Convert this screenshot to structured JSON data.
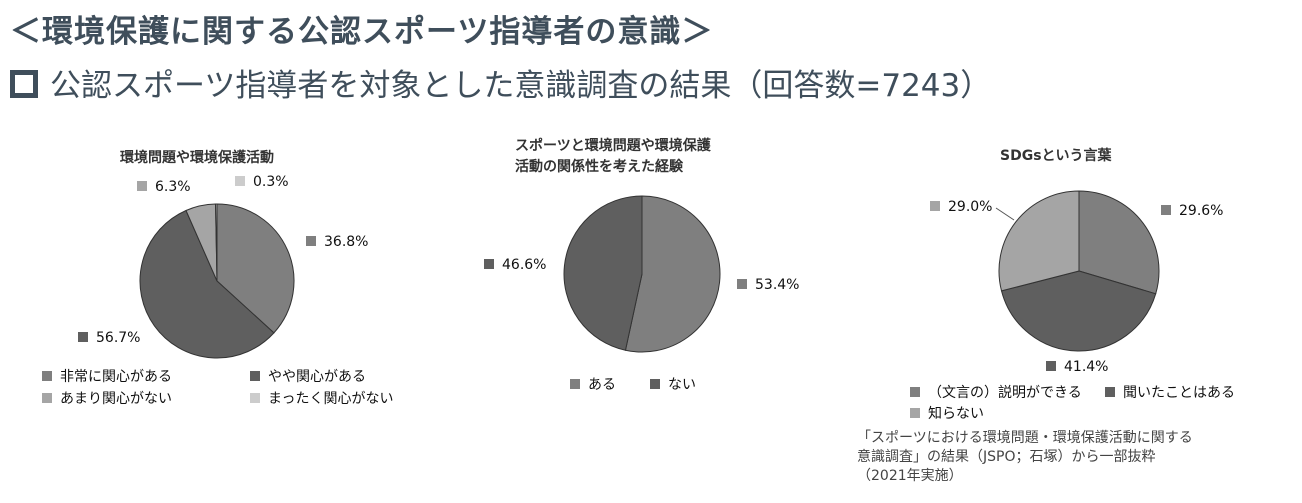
{
  "header": {
    "title": "＜環境保護に関する公認スポーツ指導者の意識＞",
    "subtitle": "公認スポーツ指導者を対象とした意識調査の結果（回答数=7243）"
  },
  "chart_data": [
    {
      "type": "pie",
      "title": "環境問題や環境保護活動",
      "labels": [
        "非常に関心がある",
        "やや関心がある",
        "あまり関心がない",
        "まったく関心がない"
      ],
      "values": [
        36.8,
        56.7,
        6.3,
        0.3
      ],
      "value_labels": [
        "36.8%",
        "56.7%",
        "6.3%",
        "0.3%"
      ],
      "colors": [
        "#7f7f7f",
        "#5f5f5f",
        "#a5a5a5",
        "#cccccc"
      ],
      "legend_position": "bottom"
    },
    {
      "type": "pie",
      "title_lines": [
        "スポーツと環境問題や環境保護",
        "活動の関係性を考えた経験"
      ],
      "labels": [
        "ある",
        "ない"
      ],
      "values": [
        53.4,
        46.6
      ],
      "value_labels": [
        "53.4%",
        "46.6%"
      ],
      "colors": [
        "#7f7f7f",
        "#5f5f5f"
      ],
      "legend_position": "bottom"
    },
    {
      "type": "pie",
      "title": "SDGsという言葉",
      "labels": [
        "（文言の）説明ができる",
        "聞いたことはある",
        "知らない"
      ],
      "values": [
        29.6,
        41.4,
        29.0
      ],
      "value_labels": [
        "29.6%",
        "41.4%",
        "29.0%"
      ],
      "colors": [
        "#7f7f7f",
        "#5f5f5f",
        "#a5a5a5"
      ],
      "legend_position": "bottom"
    }
  ],
  "source": {
    "lines": [
      "「スポーツにおける環境問題・環境保護活動に関する",
      "意識調査」の結果（JSPO；石塚）から一部抜粋",
      "（2021年実施）"
    ]
  }
}
